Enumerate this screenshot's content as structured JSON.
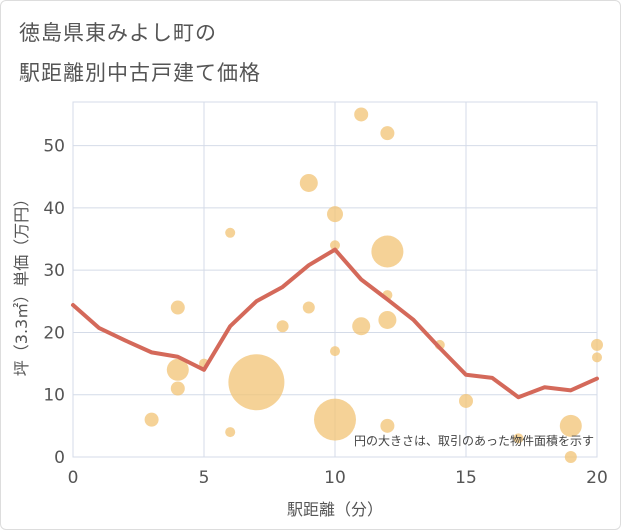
{
  "header": {
    "title_line1": "徳島県東みよし町の",
    "title_line2": "駅距離別中古戸建て価格"
  },
  "chart_data": {
    "type": "scatter",
    "xlabel": "駅距離（分）",
    "ylabel": "坪（3.3㎡）単価（万円）",
    "xlim": [
      0,
      20
    ],
    "ylim": [
      0,
      57
    ],
    "x_ticks": [
      0,
      5,
      10,
      15,
      20
    ],
    "y_ticks": [
      0,
      10,
      20,
      30,
      40,
      50
    ],
    "grid": true,
    "note": "円の大きさは、取引のあった物件面積を示す",
    "colors": {
      "bubble": "#f2c374",
      "line": "#d4695a",
      "grid": "#d4dbe8",
      "background": "#ffffff"
    },
    "bubbles": [
      {
        "x": 3,
        "y": 6,
        "size": 7
      },
      {
        "x": 4,
        "y": 24,
        "size": 7
      },
      {
        "x": 4,
        "y": 14,
        "size": 11
      },
      {
        "x": 4,
        "y": 11,
        "size": 7
      },
      {
        "x": 5,
        "y": 15,
        "size": 5
      },
      {
        "x": 6,
        "y": 36,
        "size": 5
      },
      {
        "x": 6,
        "y": 4,
        "size": 5
      },
      {
        "x": 7,
        "y": 12,
        "size": 28
      },
      {
        "x": 8,
        "y": 21,
        "size": 6
      },
      {
        "x": 9,
        "y": 44,
        "size": 9
      },
      {
        "x": 9,
        "y": 24,
        "size": 6
      },
      {
        "x": 10,
        "y": 39,
        "size": 8
      },
      {
        "x": 10,
        "y": 34,
        "size": 5
      },
      {
        "x": 10,
        "y": 17,
        "size": 5
      },
      {
        "x": 10,
        "y": 6,
        "size": 21
      },
      {
        "x": 11,
        "y": 55,
        "size": 7
      },
      {
        "x": 11,
        "y": 21,
        "size": 9
      },
      {
        "x": 12,
        "y": 52,
        "size": 7
      },
      {
        "x": 12,
        "y": 33,
        "size": 16
      },
      {
        "x": 12,
        "y": 26,
        "size": 5
      },
      {
        "x": 12,
        "y": 22,
        "size": 9
      },
      {
        "x": 12,
        "y": 5,
        "size": 7
      },
      {
        "x": 14,
        "y": 18,
        "size": 5
      },
      {
        "x": 15,
        "y": 9,
        "size": 7
      },
      {
        "x": 17,
        "y": 3,
        "size": 5
      },
      {
        "x": 19,
        "y": 5,
        "size": 11
      },
      {
        "x": 19,
        "y": 0,
        "size": 6
      },
      {
        "x": 20,
        "y": 18,
        "size": 6
      },
      {
        "x": 20,
        "y": 16,
        "size": 5
      }
    ],
    "series": [
      {
        "x": [
          0,
          1,
          2,
          3,
          4,
          5,
          6,
          7,
          8,
          9,
          10,
          11,
          12,
          13,
          14,
          15,
          16,
          17,
          18,
          19,
          20
        ],
        "values": [
          24.4,
          20.7,
          18.7,
          16.8,
          16.1,
          14.0,
          21.0,
          25.0,
          27.3,
          30.8,
          33.3,
          28.5,
          25.3,
          22.0,
          17.5,
          13.2,
          12.7,
          9.6,
          11.2,
          10.7,
          12.6
        ]
      }
    ]
  }
}
